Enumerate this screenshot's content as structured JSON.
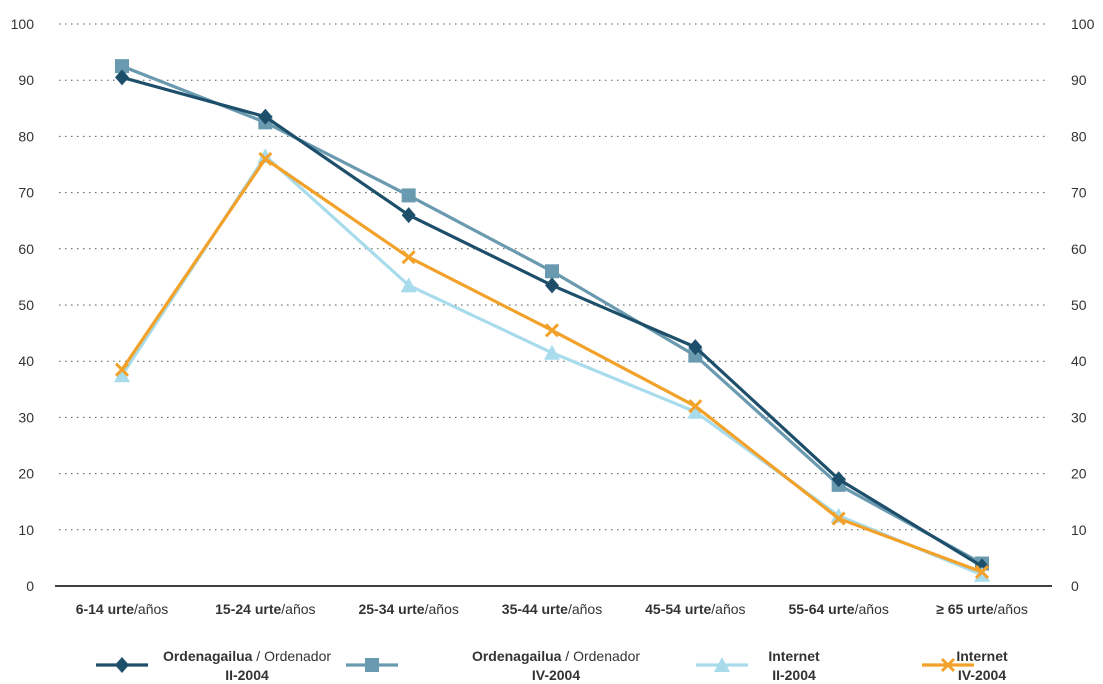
{
  "chart_data": {
    "type": "line",
    "categories": [
      {
        "bold": "6-14 urte",
        "normal": "/años"
      },
      {
        "bold": "15-24 urte",
        "normal": "/años"
      },
      {
        "bold": "25-34 urte",
        "normal": "/años"
      },
      {
        "bold": "35-44 urte",
        "normal": "/años"
      },
      {
        "bold": "45-54 urte",
        "normal": "/años"
      },
      {
        "bold": "55-64 urte",
        "normal": "/años"
      },
      {
        "bold": "≥ 65 urte",
        "normal": "/años"
      }
    ],
    "ylim": [
      0,
      100
    ],
    "yticks": [
      0,
      10,
      20,
      30,
      40,
      50,
      60,
      70,
      80,
      90,
      100
    ],
    "grid": "dotted-horizontal",
    "right_axis": true,
    "legend_position": "bottom",
    "series": [
      {
        "name_bold": "Ordenagailua",
        "name_normal": " / Ordenador",
        "period": "II-2004",
        "color": "#1d4f6b",
        "marker": "diamond",
        "values": [
          90.5,
          83.5,
          66,
          53.5,
          42.5,
          19,
          3.5
        ]
      },
      {
        "name_bold": "Ordenagailua",
        "name_normal": " / Ordenador",
        "period": "IV-2004",
        "color": "#6a9ab0",
        "marker": "square",
        "values": [
          92.5,
          82.5,
          69.5,
          56,
          41,
          18,
          4
        ]
      },
      {
        "name_bold": "Internet",
        "name_normal": "",
        "period": "II-2004",
        "color": "#a8dced",
        "marker": "triangle",
        "values": [
          37.5,
          76.5,
          53.5,
          41.5,
          31,
          12.5,
          2
        ]
      },
      {
        "name_bold": "Internet",
        "name_normal": "",
        "period": "IV-2004",
        "color": "#f2a22a",
        "marker": "x",
        "values": [
          38.5,
          76,
          58.5,
          45.5,
          32,
          12,
          2.5
        ]
      }
    ]
  }
}
